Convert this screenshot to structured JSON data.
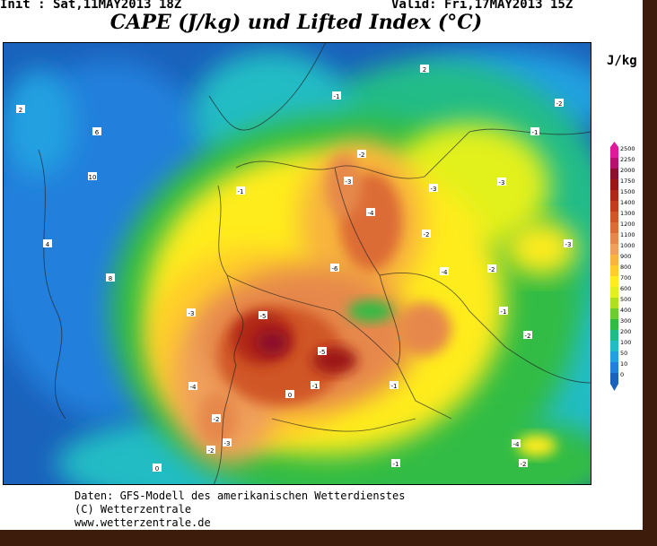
{
  "header": {
    "init": "Init : Sat,11MAY2013 18Z",
    "valid": "Valid: Fri,17MAY2013 15Z",
    "title": "CAPE (J/kg) und Lifted Index (°C)"
  },
  "legend": {
    "unit": "J/kg",
    "levels": [
      2500,
      2250,
      2000,
      1750,
      1500,
      1400,
      1300,
      1200,
      1100,
      1000,
      900,
      800,
      700,
      600,
      500,
      400,
      300,
      200,
      100,
      50,
      10,
      0
    ],
    "colors": [
      "#e0189a",
      "#b8106e",
      "#8c0f2c",
      "#9c1616",
      "#b02818",
      "#c43c1e",
      "#d05628",
      "#dc6c36",
      "#e6884c",
      "#f0a05c",
      "#f8b43c",
      "#ffcc2c",
      "#ffec1e",
      "#e2f01e",
      "#aee020",
      "#6ccc30",
      "#30bc44",
      "#20bc88",
      "#22bcc4",
      "#22a0e0",
      "#2280dc",
      "#1a62bc"
    ]
  },
  "map": {
    "contour_labels": [
      "-1",
      "-2",
      "-3",
      "-4",
      "-3",
      "-2",
      "-5",
      "-6",
      "-5",
      "-4",
      "-3",
      "-2",
      "-1",
      "-2",
      "-3",
      "-1",
      "-1",
      "-4",
      "-3",
      "-2",
      "-1",
      "-3",
      "-1",
      "-2",
      "-4",
      "-2",
      "0",
      "2",
      "6",
      "8",
      "10",
      "4",
      "2",
      "0",
      "-1",
      "-2"
    ]
  },
  "footer": {
    "lines": [
      "Daten: GFS-Modell des amerikanischen Wetterdienstes",
      "(C) Wetterzentrale",
      "www.wetterzentrale.de"
    ]
  }
}
